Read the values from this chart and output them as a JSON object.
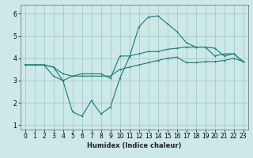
{
  "title": "",
  "xlabel": "Humidex (Indice chaleur)",
  "ylabel": "",
  "background_color": "#cce8e8",
  "line_color": "#1a7a6e",
  "grid_color": "#aacfcf",
  "xlim": [
    -0.5,
    23.5
  ],
  "ylim": [
    0.8,
    6.4
  ],
  "xticks": [
    0,
    1,
    2,
    3,
    4,
    5,
    6,
    7,
    8,
    9,
    10,
    11,
    12,
    13,
    14,
    15,
    16,
    17,
    18,
    19,
    20,
    21,
    22,
    23
  ],
  "yticks": [
    1,
    2,
    3,
    4,
    5,
    6
  ],
  "line1_x": [
    0,
    1,
    2,
    3,
    4,
    5,
    6,
    7,
    8,
    9,
    10,
    11,
    12,
    13,
    14,
    15,
    16,
    17,
    18,
    19,
    20,
    21,
    22,
    23
  ],
  "line1_y": [
    3.7,
    3.7,
    3.7,
    3.6,
    3.0,
    3.2,
    3.3,
    3.3,
    3.3,
    3.1,
    4.1,
    4.1,
    4.2,
    4.3,
    4.3,
    4.4,
    4.45,
    4.5,
    4.5,
    4.5,
    4.1,
    4.2,
    4.2,
    3.85
  ],
  "line2_x": [
    0,
    1,
    2,
    3,
    4,
    5,
    6,
    7,
    8,
    9,
    10,
    11,
    12,
    13,
    14,
    15,
    16,
    17,
    18,
    19,
    20,
    21,
    22,
    23
  ],
  "line2_y": [
    3.7,
    3.7,
    3.7,
    3.2,
    3.0,
    1.6,
    1.4,
    2.1,
    1.5,
    1.8,
    3.1,
    4.05,
    5.4,
    5.85,
    5.9,
    5.55,
    5.2,
    4.7,
    4.5,
    4.5,
    4.45,
    4.1,
    4.2,
    3.85
  ],
  "line3_x": [
    0,
    1,
    2,
    3,
    4,
    5,
    6,
    7,
    8,
    9,
    10,
    11,
    12,
    13,
    14,
    15,
    16,
    17,
    18,
    19,
    20,
    21,
    22,
    23
  ],
  "line3_y": [
    3.7,
    3.7,
    3.7,
    3.6,
    3.3,
    3.2,
    3.2,
    3.2,
    3.2,
    3.2,
    3.5,
    3.6,
    3.7,
    3.8,
    3.9,
    4.0,
    4.05,
    3.8,
    3.8,
    3.85,
    3.85,
    3.9,
    4.0,
    3.85
  ],
  "tick_fontsize": 5.5,
  "xlabel_fontsize": 6.0,
  "lw": 0.8,
  "ms": 2.0
}
